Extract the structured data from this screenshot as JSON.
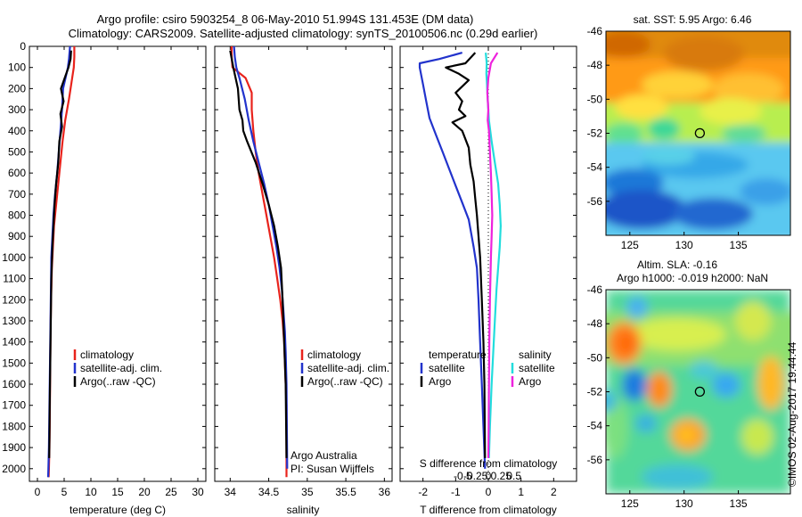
{
  "header": {
    "line1": "Argo profile: csiro 5903254_8 06-May-2010 51.994S 131.453E (DM data)",
    "line2": "Climatology: CARS2009. Satellite-adjusted climatology: synTS_20100506.nc (0.29d earlier)"
  },
  "colors": {
    "climatology": "#e8231c",
    "satellite": "#2233cc",
    "argo": "#000000",
    "temp_satellite": "#2233cc",
    "sal_satellite": "#22dddd",
    "sal_argo": "#ee22dd"
  },
  "chart_data": [
    {
      "type": "line",
      "xlabel": "temperature (deg C)",
      "xlim": [
        -1.5,
        31.5
      ],
      "xticks": [
        0,
        5,
        10,
        15,
        20,
        25,
        30
      ],
      "ylim": [
        0,
        2060
      ],
      "yticks": [
        0,
        100,
        200,
        300,
        400,
        500,
        600,
        700,
        800,
        900,
        1000,
        1100,
        1200,
        1300,
        1400,
        1500,
        1600,
        1700,
        1800,
        1900,
        2000
      ],
      "legend": [
        "climatology",
        "satellite-adj. clim.",
        "Argo(..raw -QC)"
      ],
      "legend_position": "lower-center",
      "series": [
        {
          "name": "climatology",
          "color": "#e8231c",
          "x": [
            6.9,
            6.9,
            6.8,
            6.5,
            5.9,
            5.2,
            4.7,
            4.3,
            3.9,
            3.5,
            3.1,
            2.9,
            2.7,
            2.55,
            2.45,
            2.4,
            2.35,
            2.3,
            2.25,
            2.2,
            2.15,
            2.1
          ],
          "y": [
            0,
            50,
            100,
            150,
            250,
            350,
            450,
            550,
            650,
            750,
            850,
            950,
            1050,
            1200,
            1350,
            1500,
            1650,
            1800,
            1900,
            1950,
            2000,
            2040
          ]
        },
        {
          "name": "satellite-adj. clim.",
          "color": "#2233cc",
          "x": [
            6.1,
            6.0,
            5.9,
            5.7,
            4.8,
            4.6,
            4.3,
            4.0,
            3.7,
            3.3,
            3.0,
            2.8,
            2.6,
            2.5,
            2.4,
            2.3,
            2.2,
            2.15,
            2.1,
            2.05,
            2.0
          ],
          "y": [
            0,
            30,
            60,
            100,
            200,
            300,
            400,
            500,
            600,
            700,
            800,
            900,
            1000,
            1200,
            1400,
            1600,
            1800,
            1900,
            1950,
            2000,
            2040
          ]
        },
        {
          "name": "Argo(..raw -QC)",
          "color": "#000000",
          "x": [
            6.3,
            6.2,
            5.8,
            5.1,
            4.4,
            4.9,
            4.3,
            4.6,
            4.1,
            3.9,
            3.5,
            3.2,
            3.0,
            2.8,
            2.6,
            2.5,
            2.4,
            2.3,
            2.25,
            2.2
          ],
          "y": [
            20,
            60,
            100,
            150,
            200,
            260,
            320,
            380,
            450,
            550,
            650,
            750,
            850,
            950,
            1100,
            1300,
            1500,
            1700,
            1850,
            1950
          ]
        }
      ]
    },
    {
      "type": "line",
      "xlabel": "salinity",
      "xlim": [
        33.8,
        36.1
      ],
      "xticks": [
        34,
        34.5,
        35,
        35.5,
        36
      ],
      "xticklabels": [
        "34",
        "34.5",
        "35",
        "35.5",
        "36"
      ],
      "ylim": [
        0,
        2060
      ],
      "legend": [
        "climatology",
        "satellite-adj. clim.",
        "Argo(..raw -QC)"
      ],
      "legend_position": "lower-center",
      "annotation": [
        "Argo Australia",
        "PI: Susan Wijffels"
      ],
      "series": [
        {
          "name": "climatology",
          "color": "#e8231c",
          "x": [
            34.02,
            34.02,
            34.03,
            34.2,
            34.28,
            34.28,
            34.3,
            34.33,
            34.37,
            34.42,
            34.47,
            34.52,
            34.57,
            34.61,
            34.65,
            34.68,
            34.7,
            34.71,
            34.72,
            34.73,
            34.73
          ],
          "y": [
            0,
            50,
            100,
            150,
            220,
            300,
            400,
            500,
            600,
            700,
            800,
            900,
            1000,
            1100,
            1200,
            1300,
            1400,
            1500,
            1600,
            1700,
            2040
          ]
        },
        {
          "name": "satellite-adj. clim.",
          "color": "#2233cc",
          "x": [
            34.05,
            34.06,
            34.08,
            34.12,
            34.19,
            34.24,
            34.3,
            34.37,
            34.44,
            34.5,
            34.55,
            34.6,
            34.64,
            34.67,
            34.69,
            34.71,
            34.72,
            34.73,
            34.74
          ],
          "y": [
            0,
            50,
            100,
            150,
            250,
            350,
            450,
            550,
            650,
            750,
            850,
            950,
            1050,
            1150,
            1250,
            1350,
            1450,
            1600,
            2000
          ]
        },
        {
          "name": "Argo(..raw -QC)",
          "color": "#000000",
          "x": [
            34.0,
            34.04,
            34.1,
            34.12,
            34.16,
            34.17,
            34.22,
            34.33,
            34.42,
            34.5,
            34.57,
            34.62,
            34.66,
            34.68,
            34.7,
            34.72,
            34.73
          ],
          "y": [
            20,
            100,
            200,
            300,
            350,
            400,
            450,
            550,
            650,
            750,
            850,
            950,
            1050,
            1200,
            1400,
            1600,
            1950
          ]
        }
      ]
    },
    {
      "type": "line",
      "xlabel": "T difference from climatology",
      "xlim": [
        -2.7,
        2.7
      ],
      "xticks": [
        -2,
        -1,
        0,
        1,
        2
      ],
      "top_xlabel": "S difference from climatology",
      "top_xticks": [
        -0.5,
        -0.25,
        0,
        0.25,
        0.5
      ],
      "top_xticklabels": [
        "-0.5",
        "-0.25",
        "0",
        "0.25",
        "0.5"
      ],
      "ylim": [
        0,
        2060
      ],
      "legend_groups": [
        {
          "title": "temperature",
          "entries": [
            "satellite",
            "Argo"
          ]
        },
        {
          "title": "salinity",
          "entries": [
            "satellite",
            "Argo"
          ]
        }
      ],
      "series": [
        {
          "name": "temperature satellite",
          "color": "#2233cc",
          "x": [
            -0.8,
            -1.5,
            -2.1,
            -2.1,
            -2.0,
            -1.9,
            -1.8,
            -1.6,
            -1.4,
            -1.2,
            -1.0,
            -0.8,
            -0.6,
            -0.45,
            -0.35,
            -0.3,
            -0.25,
            -0.2,
            -0.15,
            -0.1
          ],
          "y": [
            30,
            60,
            80,
            100,
            180,
            260,
            340,
            420,
            500,
            580,
            660,
            740,
            820,
            950,
            1050,
            1200,
            1400,
            1600,
            1800,
            2000
          ]
        },
        {
          "name": "temperature Argo",
          "color": "#000000",
          "x": [
            -0.4,
            -0.7,
            -1.3,
            -0.9,
            -0.6,
            -1.0,
            -0.8,
            -0.9,
            -0.7,
            -1.1,
            -0.8,
            -0.6,
            -0.55,
            -0.45,
            -0.4,
            -0.35,
            -0.3,
            -0.25,
            -0.2,
            -0.15,
            -0.12,
            -0.1
          ],
          "y": [
            30,
            80,
            100,
            130,
            160,
            220,
            260,
            300,
            330,
            360,
            400,
            480,
            560,
            640,
            720,
            800,
            900,
            1000,
            1200,
            1400,
            1600,
            1950
          ]
        },
        {
          "name": "salinity satellite",
          "color": "#22dddd",
          "x": [
            -0.08,
            -0.05,
            -0.06,
            -0.04,
            -0.02,
            0.02,
            0.1,
            0.2,
            0.3,
            0.35,
            0.38,
            0.35,
            0.3,
            0.25,
            0.2,
            0.15,
            0.1,
            0.05,
            0.02
          ],
          "y": [
            30,
            80,
            130,
            180,
            250,
            350,
            450,
            550,
            650,
            750,
            850,
            950,
            1050,
            1150,
            1300,
            1450,
            1600,
            1800,
            1950
          ]
        },
        {
          "name": "salinity Argo",
          "color": "#ee22dd",
          "x": [
            0.28,
            0.08,
            0.0,
            -0.03,
            0.0,
            -0.02,
            0.02,
            0.05,
            0.08,
            0.1,
            0.12,
            0.1,
            0.08,
            0.05,
            0.03,
            0.02,
            0.01,
            0.0
          ],
          "y": [
            30,
            80,
            150,
            220,
            300,
            350,
            400,
            500,
            600,
            700,
            800,
            900,
            1000,
            1200,
            1400,
            1600,
            1800,
            1950
          ]
        }
      ]
    },
    {
      "type": "heatmap",
      "title": "sat. SST: 5.95 Argo: 6.46",
      "xticks": [
        125,
        130,
        135
      ],
      "yticks": [
        -46,
        -48,
        -50,
        -52,
        -54,
        -56
      ],
      "xlim": [
        122.8,
        139.8
      ],
      "ylim": [
        -58,
        -46
      ],
      "marker": {
        "lon": 131.453,
        "lat": -51.994
      }
    },
    {
      "type": "heatmap",
      "title": "Altim. SLA: -0.16",
      "subtitle": "Argo h1000: -0.019 h2000: NaN",
      "xticks": [
        125,
        130,
        135
      ],
      "yticks": [
        -46,
        -48,
        -50,
        -52,
        -54,
        -56
      ],
      "xlim": [
        122.8,
        139.8
      ],
      "ylim": [
        -58,
        -46
      ],
      "marker": {
        "lon": 131.453,
        "lat": -51.994
      }
    }
  ],
  "footer": {
    "credit": "©IMOS 02-Aug-2017 19:44:44"
  }
}
